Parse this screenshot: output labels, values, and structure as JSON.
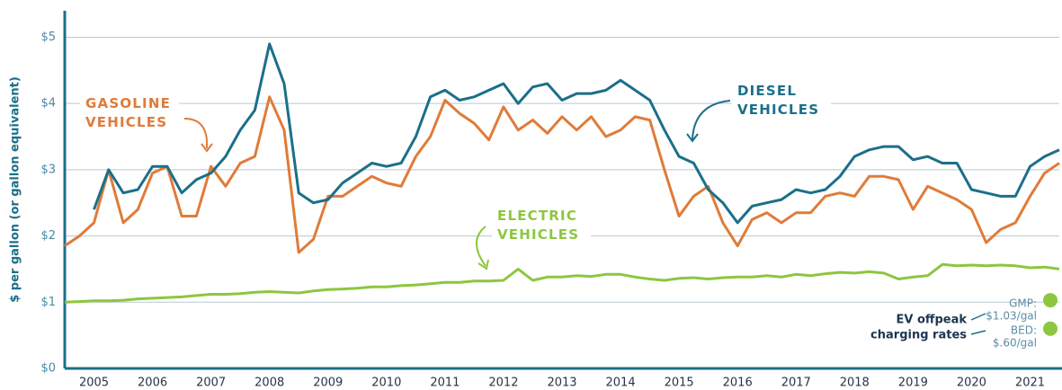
{
  "chart_data": {
    "type": "line",
    "y_label": "$ per gallon (or gallon equivalent)",
    "xlim": [
      2005,
      2022
    ],
    "xticks": [
      {
        "value": 2005.5,
        "label": "2005"
      },
      {
        "value": 2006.5,
        "label": "2006"
      },
      {
        "value": 2007.5,
        "label": "2007"
      },
      {
        "value": 2008.5,
        "label": "2008"
      },
      {
        "value": 2009.5,
        "label": "2009"
      },
      {
        "value": 2010.5,
        "label": "2010"
      },
      {
        "value": 2011.5,
        "label": "2011"
      },
      {
        "value": 2012.5,
        "label": "2012"
      },
      {
        "value": 2013.5,
        "label": "2013"
      },
      {
        "value": 2014.5,
        "label": "2014"
      },
      {
        "value": 2015.5,
        "label": "2015"
      },
      {
        "value": 2016.5,
        "label": "2016"
      },
      {
        "value": 2017.5,
        "label": "2017"
      },
      {
        "value": 2018.5,
        "label": "2018"
      },
      {
        "value": 2019.5,
        "label": "2019"
      },
      {
        "value": 2020.5,
        "label": "2020"
      },
      {
        "value": 2021.5,
        "label": "2021"
      }
    ],
    "ylim": [
      0,
      5.4
    ],
    "yticks": [
      {
        "value": 0,
        "label": "$0"
      },
      {
        "value": 1,
        "label": "$1"
      },
      {
        "value": 2,
        "label": "$2"
      },
      {
        "value": 3,
        "label": "$3"
      },
      {
        "value": 4,
        "label": "$4"
      },
      {
        "value": 5,
        "label": "$5"
      }
    ],
    "grid": true,
    "x": [
      2005,
      2005.25,
      2005.5,
      2005.75,
      2006,
      2006.25,
      2006.5,
      2006.75,
      2007,
      2007.25,
      2007.5,
      2007.75,
      2008,
      2008.25,
      2008.5,
      2008.75,
      2009,
      2009.25,
      2009.5,
      2009.75,
      2010,
      2010.25,
      2010.5,
      2010.75,
      2011,
      2011.25,
      2011.5,
      2011.75,
      2012,
      2012.25,
      2012.5,
      2012.75,
      2013,
      2013.25,
      2013.5,
      2013.75,
      2014,
      2014.25,
      2014.5,
      2014.75,
      2015,
      2015.25,
      2015.5,
      2015.75,
      2016,
      2016.25,
      2016.5,
      2016.75,
      2017,
      2017.25,
      2017.5,
      2017.75,
      2018,
      2018.25,
      2018.5,
      2018.75,
      2019,
      2019.25,
      2019.5,
      2019.75,
      2020,
      2020.25,
      2020.5,
      2020.75,
      2021,
      2021.25,
      2021.5,
      2021.75,
      2022
    ],
    "series": [
      {
        "name": "GASOLINE VEHICLES",
        "color": "#e07b39",
        "values": [
          1.85,
          2.0,
          2.2,
          3.0,
          2.2,
          2.4,
          2.95,
          3.05,
          2.3,
          2.3,
          3.05,
          2.75,
          3.1,
          3.2,
          4.1,
          3.6,
          1.75,
          1.95,
          2.6,
          2.6,
          2.75,
          2.9,
          2.8,
          2.75,
          3.2,
          3.5,
          4.05,
          3.85,
          3.7,
          3.45,
          3.95,
          3.6,
          3.75,
          3.55,
          3.8,
          3.6,
          3.8,
          3.5,
          3.6,
          3.8,
          3.75,
          3.0,
          2.3,
          2.6,
          2.75,
          2.2,
          1.85,
          2.25,
          2.35,
          2.2,
          2.35,
          2.35,
          2.6,
          2.65,
          2.6,
          2.9,
          2.9,
          2.85,
          2.4,
          2.75,
          2.65,
          2.55,
          2.4,
          1.9,
          2.1,
          2.2,
          2.6,
          2.95,
          3.1
        ]
      },
      {
        "name": "DIESEL VEHICLES",
        "color": "#1b6f8a",
        "values": [
          null,
          null,
          2.4,
          3.0,
          2.65,
          2.7,
          3.05,
          3.05,
          2.65,
          2.85,
          2.95,
          3.2,
          3.6,
          3.9,
          4.9,
          4.3,
          2.65,
          2.5,
          2.55,
          2.8,
          2.95,
          3.1,
          3.05,
          3.1,
          3.5,
          4.1,
          4.2,
          4.05,
          4.1,
          4.2,
          4.3,
          4.0,
          4.25,
          4.3,
          4.05,
          4.15,
          4.15,
          4.2,
          4.35,
          4.2,
          4.05,
          3.6,
          3.2,
          3.1,
          2.7,
          2.5,
          2.2,
          2.45,
          2.5,
          2.55,
          2.7,
          2.65,
          2.7,
          2.9,
          3.2,
          3.3,
          3.35,
          3.35,
          3.15,
          3.2,
          3.1,
          3.1,
          2.7,
          2.65,
          2.6,
          2.6,
          3.05,
          3.2,
          3.3
        ]
      },
      {
        "name": "ELECTRIC VEHICLES",
        "color": "#8dc63f",
        "values": [
          1.0,
          1.01,
          1.02,
          1.02,
          1.03,
          1.05,
          1.06,
          1.07,
          1.08,
          1.1,
          1.12,
          1.12,
          1.13,
          1.15,
          1.16,
          1.15,
          1.14,
          1.17,
          1.19,
          1.2,
          1.21,
          1.23,
          1.23,
          1.25,
          1.26,
          1.28,
          1.3,
          1.3,
          1.32,
          1.32,
          1.33,
          1.5,
          1.33,
          1.38,
          1.38,
          1.4,
          1.39,
          1.42,
          1.42,
          1.38,
          1.35,
          1.33,
          1.36,
          1.37,
          1.35,
          1.37,
          1.38,
          1.38,
          1.4,
          1.38,
          1.42,
          1.4,
          1.43,
          1.45,
          1.44,
          1.46,
          1.44,
          1.35,
          1.38,
          1.4,
          1.57,
          1.55,
          1.56,
          1.55,
          1.56,
          1.55,
          1.52,
          1.53,
          1.5
        ]
      }
    ],
    "rates_title": [
      "EV offpeak",
      "charging rates"
    ],
    "rates": [
      {
        "label": [
          "GMP:",
          "$1.03/gal"
        ],
        "value": 1.03
      },
      {
        "label": [
          "BED:",
          "$.60/gal"
        ],
        "value": 0.6
      }
    ],
    "rates_color": "#8dc63f"
  }
}
